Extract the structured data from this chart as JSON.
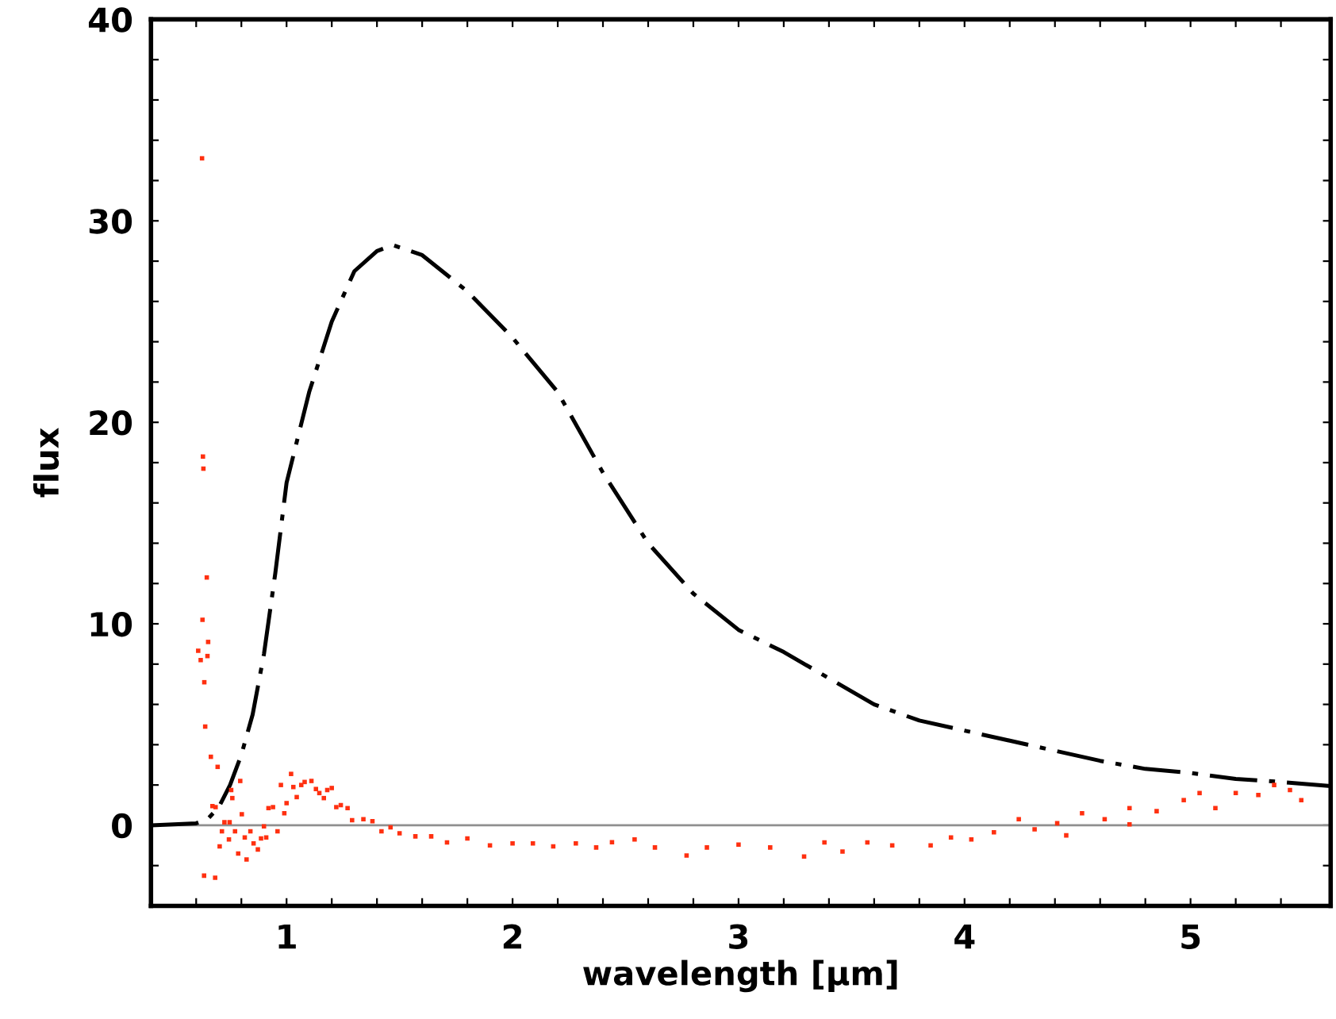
{
  "chart_data": {
    "type": "line",
    "xlabel": "wavelength [μm]",
    "ylabel": "flux",
    "xlim": [
      0.4,
      5.62
    ],
    "ylim": [
      -4,
      40
    ],
    "xticks": [
      {
        "value": 0.6,
        "label": null
      },
      {
        "value": 0.8,
        "label": null
      },
      1,
      {
        "value": 1.2,
        "label": null
      },
      {
        "value": 1.4,
        "label": null
      },
      {
        "value": 1.6,
        "label": null
      },
      {
        "value": 1.8,
        "label": null
      },
      2,
      {
        "value": 2.2,
        "label": null
      },
      {
        "value": 2.4,
        "label": null
      },
      {
        "value": 2.6,
        "label": null
      },
      {
        "value": 2.8,
        "label": null
      },
      3,
      {
        "value": 3.2,
        "label": null
      },
      {
        "value": 3.4,
        "label": null
      },
      {
        "value": 3.6,
        "label": null
      },
      {
        "value": 3.8,
        "label": null
      },
      4,
      {
        "value": 4.2,
        "label": null
      },
      {
        "value": 4.4,
        "label": null
      },
      {
        "value": 4.6,
        "label": null
      },
      {
        "value": 4.8,
        "label": null
      },
      5,
      {
        "value": 5.2,
        "label": null
      },
      {
        "value": 5.4,
        "label": null
      }
    ],
    "yticks": [
      {
        "value": -2,
        "label": null
      },
      0,
      {
        "value": 2,
        "label": null
      },
      {
        "value": 4,
        "label": null
      },
      {
        "value": 6,
        "label": null
      },
      {
        "value": 8,
        "label": null
      },
      10,
      {
        "value": 12,
        "label": null
      },
      {
        "value": 14,
        "label": null
      },
      {
        "value": 16,
        "label": null
      },
      {
        "value": 18,
        "label": null
      },
      20,
      {
        "value": 22,
        "label": null
      },
      {
        "value": 24,
        "label": null
      },
      {
        "value": 26,
        "label": null
      },
      {
        "value": 28,
        "label": null
      },
      30,
      {
        "value": 32,
        "label": null
      },
      {
        "value": 34,
        "label": null
      },
      {
        "value": 36,
        "label": null
      },
      {
        "value": 38,
        "label": null
      },
      40
    ],
    "grid": false,
    "legend": false,
    "ref_lines": [
      {
        "axis": "y",
        "value": 0,
        "color": "#909090"
      }
    ],
    "series": [
      {
        "color": "#000000",
        "line_style": "dashed",
        "marker": "none",
        "x": [
          0.4,
          0.6,
          0.65,
          0.7,
          0.75,
          0.8,
          0.85,
          0.9,
          0.95,
          1.0,
          1.1,
          1.2,
          1.3,
          1.4,
          1.47,
          1.6,
          1.8,
          2.0,
          2.2,
          2.4,
          2.6,
          2.8,
          3.0,
          3.2,
          3.4,
          3.6,
          3.8,
          4.0,
          4.2,
          4.4,
          4.6,
          4.8,
          5.0,
          5.2,
          5.4,
          5.62
        ],
        "values": [
          0,
          0.1,
          0.3,
          0.9,
          2,
          3.5,
          5.5,
          8.5,
          12.5,
          17,
          21.5,
          25,
          27.5,
          28.5,
          28.8,
          28.3,
          26.5,
          24.2,
          21.5,
          17.5,
          14,
          11.5,
          9.7,
          8.6,
          7.3,
          6.0,
          5.2,
          4.7,
          4.2,
          3.7,
          3.2,
          2.8,
          2.6,
          2.3,
          2.15,
          1.95
        ]
      },
      {
        "type": "scatter",
        "color": "#ff3010",
        "marker": "square",
        "x": [
          0.626,
          0.63,
          0.632,
          0.647,
          0.628,
          0.609,
          0.62,
          0.653,
          0.65,
          0.636,
          0.64,
          0.665,
          0.695,
          0.672,
          0.686,
          0.635,
          0.684,
          0.704,
          0.714,
          0.725,
          0.748,
          0.755,
          0.76,
          0.745,
          0.772,
          0.786,
          0.795,
          0.802,
          0.823,
          0.815,
          0.84,
          0.854,
          0.873,
          0.887,
          0.9,
          0.91,
          0.92,
          0.94,
          0.96,
          0.975,
          0.99,
          1.0,
          1.02,
          1.03,
          1.045,
          1.065,
          1.08,
          1.11,
          1.13,
          1.145,
          1.165,
          1.18,
          1.2,
          1.22,
          1.24,
          1.27,
          1.29,
          1.34,
          1.38,
          1.42,
          1.46,
          1.5,
          1.57,
          1.64,
          1.71,
          1.8,
          1.9,
          2.0,
          2.09,
          2.18,
          2.28,
          2.37,
          2.44,
          2.54,
          2.63,
          2.77,
          2.86,
          3.0,
          3.14,
          3.29,
          3.38,
          3.46,
          3.57,
          3.68,
          3.85,
          3.94,
          4.03,
          4.13,
          4.24,
          4.31,
          4.41,
          4.45,
          4.52,
          4.62,
          4.73,
          4.73,
          4.85,
          4.97,
          5.04,
          5.11,
          5.2,
          5.3,
          5.37,
          5.44,
          5.49
        ],
        "values": [
          33.1,
          18.3,
          17.7,
          12.3,
          10.2,
          8.66,
          8.2,
          9.1,
          8.4,
          7.1,
          4.9,
          3.4,
          2.9,
          0.95,
          0.9,
          -2.5,
          -2.6,
          -1.05,
          -0.3,
          0.15,
          0.15,
          1.75,
          1.35,
          -0.7,
          -0.3,
          -1.4,
          2.2,
          0.55,
          -1.7,
          -0.6,
          -0.3,
          -0.9,
          -1.2,
          -0.65,
          -0.05,
          -0.6,
          0.85,
          0.9,
          -0.3,
          2.0,
          0.6,
          1.1,
          2.55,
          1.9,
          1.4,
          2.0,
          2.15,
          2.2,
          1.8,
          1.6,
          1.35,
          1.75,
          1.85,
          0.9,
          1.0,
          0.85,
          0.25,
          0.3,
          0.2,
          -0.3,
          -0.1,
          -0.4,
          -0.55,
          -0.55,
          -0.85,
          -0.65,
          -1.0,
          -0.9,
          -0.9,
          -1.05,
          -0.9,
          -1.1,
          -0.84,
          -0.7,
          -1.1,
          -1.5,
          -1.1,
          -0.96,
          -1.1,
          -1.55,
          -0.85,
          -1.3,
          -0.85,
          -1.0,
          -1.0,
          -0.6,
          -0.7,
          -0.35,
          0.3,
          -0.2,
          0.1,
          -0.5,
          0.6,
          0.3,
          0.05,
          0.85,
          0.7,
          1.25,
          1.6,
          0.85,
          1.6,
          1.5,
          2.0,
          1.75,
          1.25
        ]
      }
    ]
  }
}
